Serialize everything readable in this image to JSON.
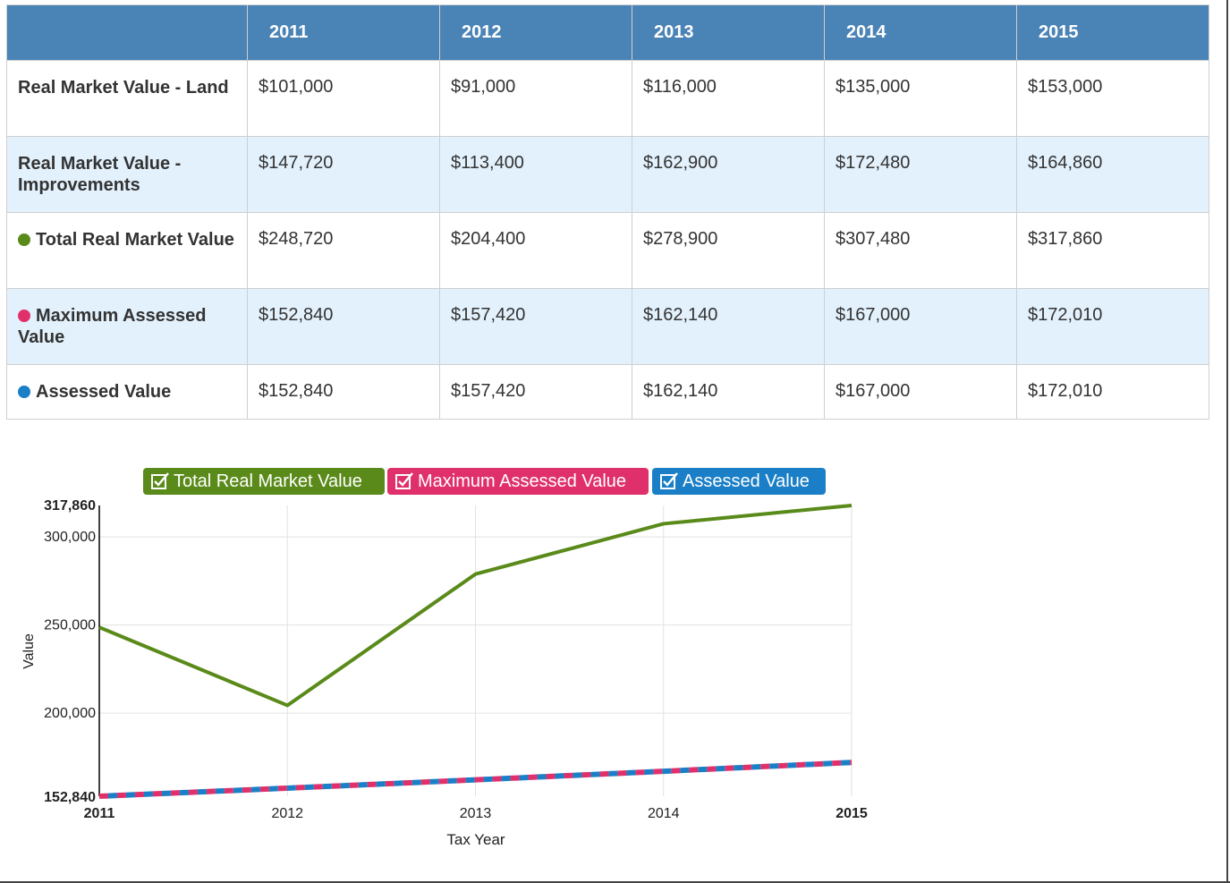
{
  "table": {
    "columns": [
      "",
      "2011",
      "2012",
      "2013",
      "2014",
      "2015"
    ],
    "rows": [
      {
        "label": "Real Market Value - Land",
        "marker": null,
        "values": [
          "$101,000",
          "$91,000",
          "$116,000",
          "$135,000",
          "$153,000"
        ]
      },
      {
        "label": "Real Market Value - Improvements",
        "marker": null,
        "values": [
          "$147,720",
          "$113,400",
          "$162,900",
          "$172,480",
          "$164,860"
        ]
      },
      {
        "label": "Total Real Market Value",
        "marker": "#5a8a1a",
        "values": [
          "$248,720",
          "$204,400",
          "$278,900",
          "$307,480",
          "$317,860"
        ]
      },
      {
        "label": "Maximum Assessed Value",
        "marker": "#e0306b",
        "values": [
          "$152,840",
          "$157,420",
          "$162,140",
          "$167,000",
          "$172,010"
        ]
      },
      {
        "label": "Assessed Value",
        "marker": "#1a7fc6",
        "values": [
          "$152,840",
          "$157,420",
          "$162,140",
          "$167,000",
          "$172,010"
        ]
      }
    ]
  },
  "legend": [
    {
      "label": "Total Real Market Value",
      "color": "#5a8a1a",
      "checked": true
    },
    {
      "label": "Maximum Assessed Value",
      "color": "#e0306b",
      "checked": true
    },
    {
      "label": "Assessed Value",
      "color": "#1a7fc6",
      "checked": true
    }
  ],
  "chart_data": {
    "type": "line",
    "x": [
      2011,
      2012,
      2013,
      2014,
      2015
    ],
    "x_tick_labels": [
      "2011",
      "2012",
      "2013",
      "2014",
      "2015"
    ],
    "y_tick_labels": [
      "152,840",
      "200,000",
      "250,000",
      "300,000",
      "317,860"
    ],
    "y_ticks": [
      152840,
      200000,
      250000,
      300000,
      317860
    ],
    "ylim": [
      152840,
      317860
    ],
    "xlabel": "Tax Year",
    "ylabel": "Value",
    "grid": true,
    "legend_position": "top",
    "series": [
      {
        "name": "Total Real Market Value",
        "color": "#5a8a1a",
        "style": "solid",
        "values": [
          248720,
          204400,
          278900,
          307480,
          317860
        ]
      },
      {
        "name": "Maximum Assessed Value",
        "color": "#e0306b",
        "style": "dashed",
        "values": [
          152840,
          157420,
          162140,
          167000,
          172010
        ]
      },
      {
        "name": "Assessed Value",
        "color": "#1a7fc6",
        "style": "dashed",
        "values": [
          152840,
          157420,
          162140,
          167000,
          172010
        ]
      }
    ]
  }
}
